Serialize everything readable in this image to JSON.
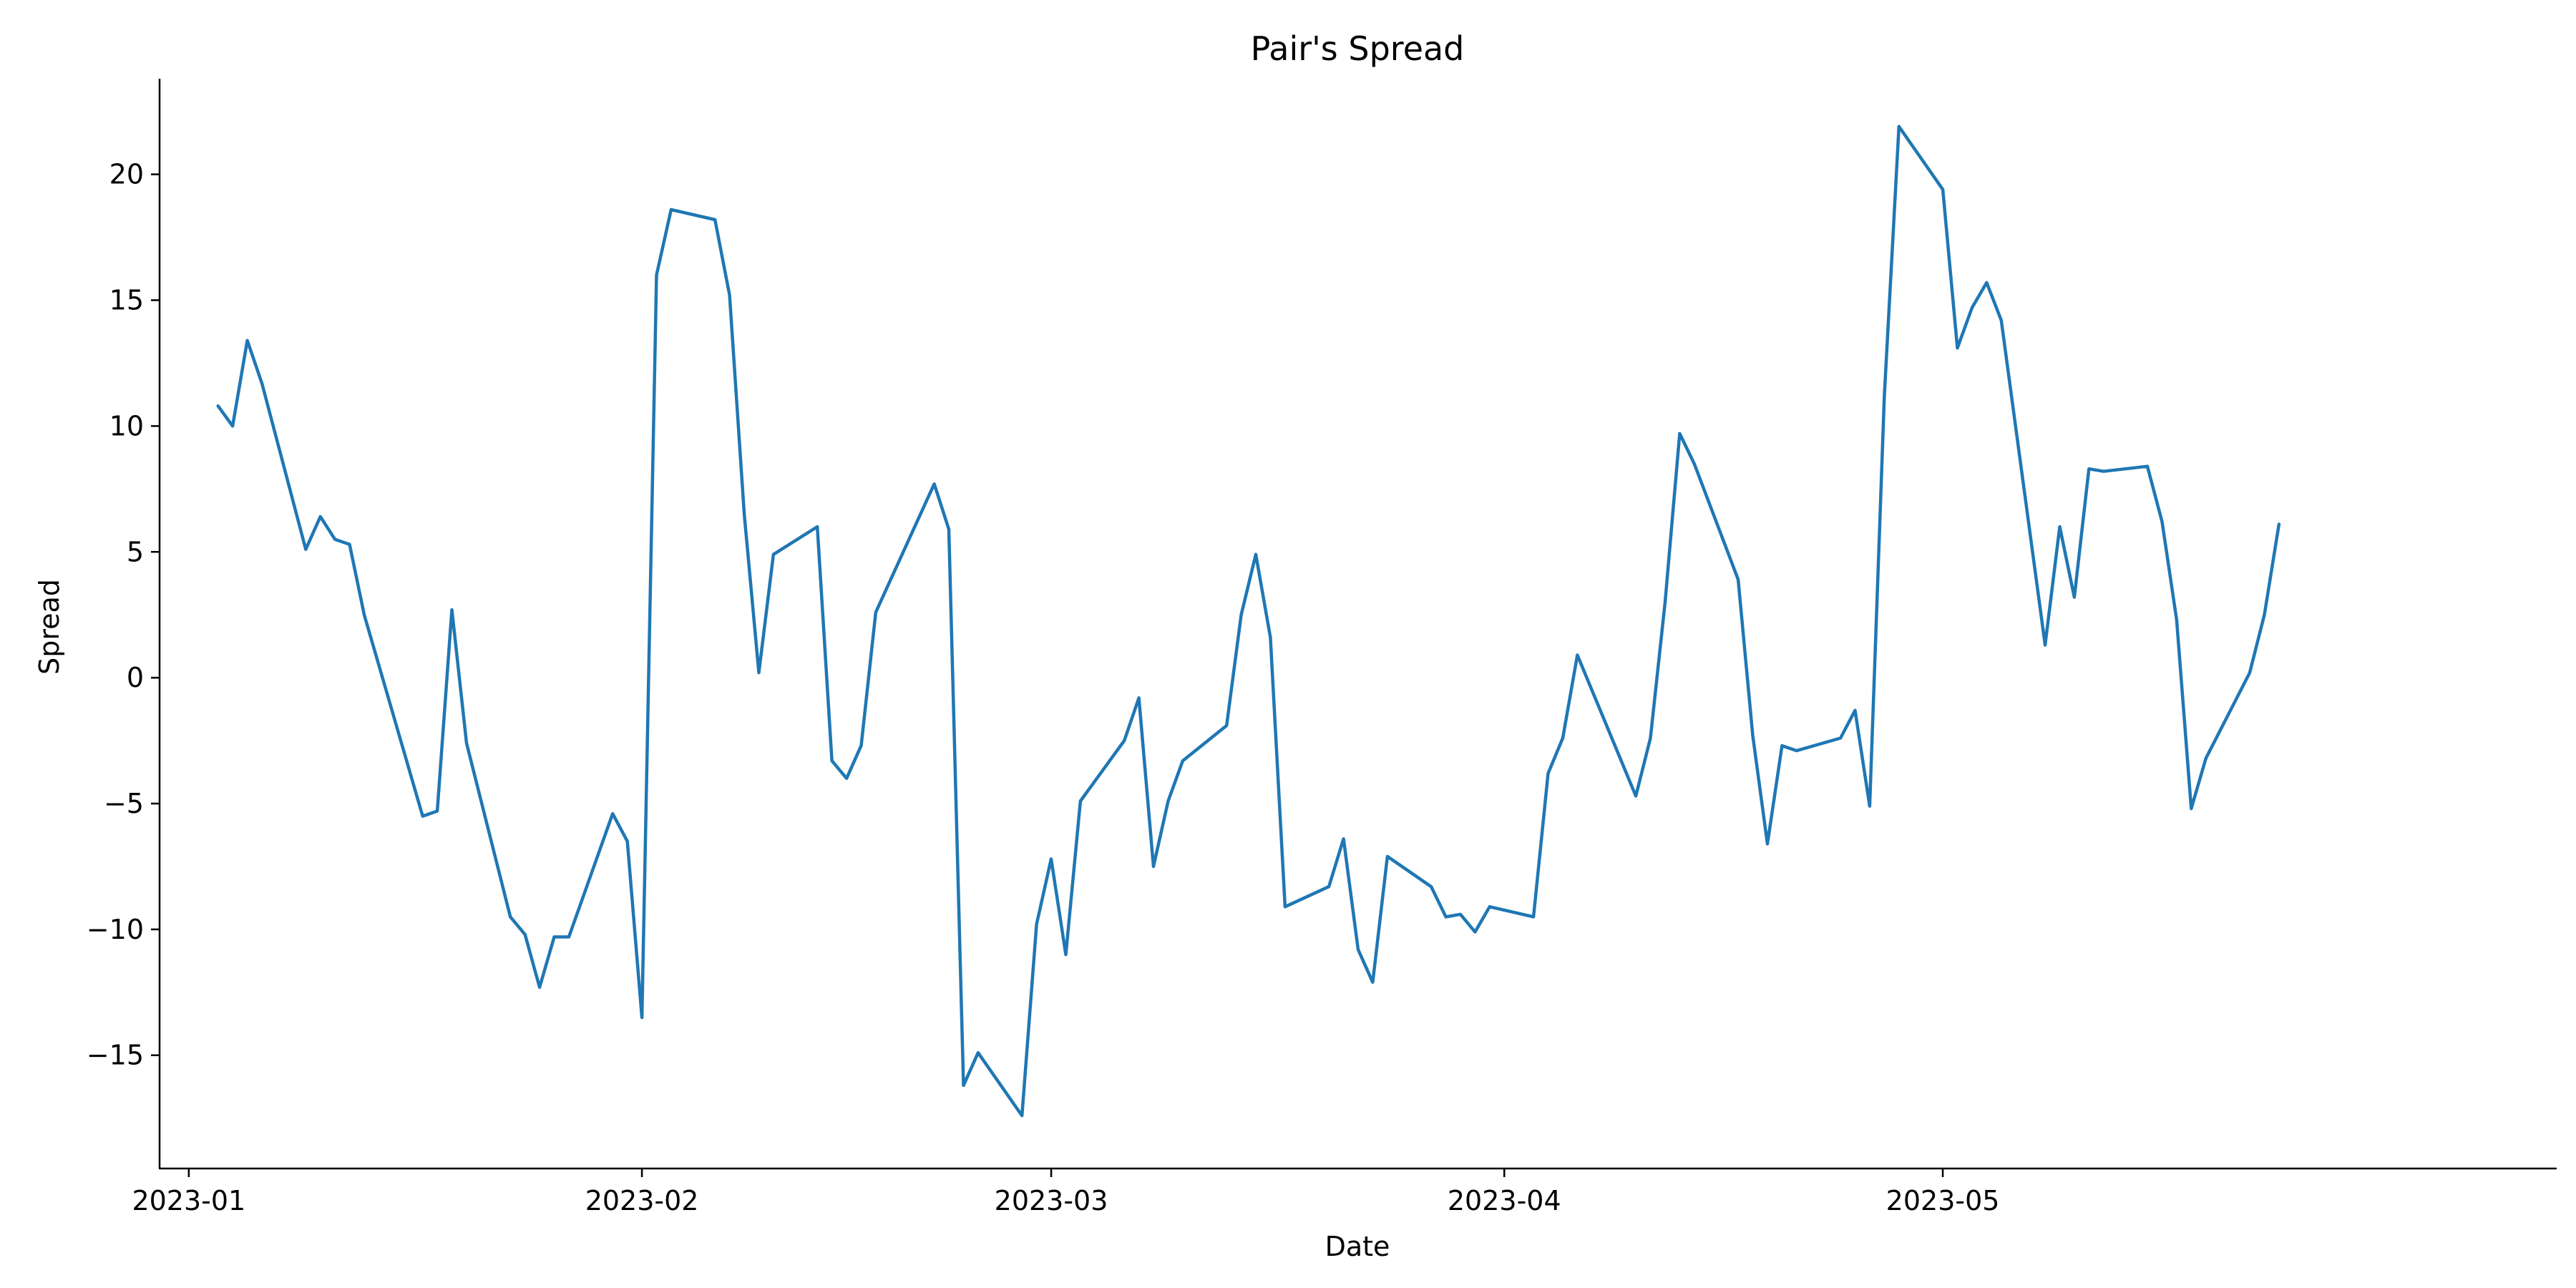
{
  "chart_data": {
    "type": "line",
    "title": "Pair's Spread",
    "xlabel": "Date",
    "ylabel": "Spread",
    "xlim": [
      "2022-12-30",
      "2023-06-12"
    ],
    "ylim": [
      -19.5,
      23.8
    ],
    "x_ticks": [
      "2023-01-01",
      "2023-02-01",
      "2023-03-01",
      "2023-04-01",
      "2023-05-01"
    ],
    "x_tick_labels": [
      "2023-01",
      "2023-02",
      "2023-03",
      "2023-04",
      "2023-05"
    ],
    "y_ticks": [
      -15,
      -10,
      -5,
      0,
      5,
      10,
      15,
      20
    ],
    "y_tick_labels": [
      "−15",
      "−10",
      "−5",
      "0",
      "5",
      "10",
      "15",
      "20"
    ],
    "grid": false,
    "legend": "none",
    "colors": {
      "series": "#1f77b4"
    },
    "series": [
      {
        "x": [
          "2023-01-03",
          "2023-01-04",
          "2023-01-05",
          "2023-01-06",
          "2023-01-09",
          "2023-01-10",
          "2023-01-11",
          "2023-01-12",
          "2023-01-13",
          "2023-01-17",
          "2023-01-18",
          "2023-01-19",
          "2023-01-20",
          "2023-01-23",
          "2023-01-24",
          "2023-01-25",
          "2023-01-26",
          "2023-01-27",
          "2023-01-30",
          "2023-01-31",
          "2023-02-01",
          "2023-02-02",
          "2023-02-03",
          "2023-02-06",
          "2023-02-07",
          "2023-02-08",
          "2023-02-09",
          "2023-02-10",
          "2023-02-13",
          "2023-02-14",
          "2023-02-15",
          "2023-02-16",
          "2023-02-17",
          "2023-02-21",
          "2023-02-22",
          "2023-02-23",
          "2023-02-24",
          "2023-02-27",
          "2023-02-28",
          "2023-03-01",
          "2023-03-02",
          "2023-03-03",
          "2023-03-06",
          "2023-03-07",
          "2023-03-08",
          "2023-03-09",
          "2023-03-10",
          "2023-03-13",
          "2023-03-14",
          "2023-03-15",
          "2023-03-16",
          "2023-03-17",
          "2023-03-20",
          "2023-03-21",
          "2023-03-22",
          "2023-03-23",
          "2023-03-24",
          "2023-03-27",
          "2023-03-28",
          "2023-03-29",
          "2023-03-30",
          "2023-03-31",
          "2023-04-03",
          "2023-04-04",
          "2023-04-05",
          "2023-04-06",
          "2023-04-10",
          "2023-04-11",
          "2023-04-12",
          "2023-04-13",
          "2023-04-14",
          "2023-04-17",
          "2023-04-18",
          "2023-04-19",
          "2023-04-20",
          "2023-04-21",
          "2023-04-24",
          "2023-04-25",
          "2023-04-26",
          "2023-04-27",
          "2023-04-28",
          "2023-05-01",
          "2023-05-02",
          "2023-05-03",
          "2023-05-04",
          "2023-05-05",
          "2023-05-08",
          "2023-05-09",
          "2023-05-10",
          "2023-05-11",
          "2023-05-12",
          "2023-05-15",
          "2023-05-16",
          "2023-05-17",
          "2023-05-18",
          "2023-05-19",
          "2023-05-22",
          "2023-05-23",
          "2023-05-24"
        ],
        "y": [
          10.8,
          10.0,
          13.4,
          11.7,
          5.1,
          6.4,
          5.5,
          5.3,
          2.5,
          -5.5,
          -5.3,
          2.7,
          -2.6,
          -9.5,
          -10.2,
          -12.3,
          -10.3,
          -10.3,
          -5.4,
          -6.5,
          -13.5,
          16.0,
          18.6,
          18.2,
          15.2,
          6.5,
          0.2,
          4.9,
          6.0,
          -3.3,
          -4.0,
          -2.7,
          2.6,
          7.7,
          5.9,
          -16.2,
          -14.9,
          -17.4,
          -9.8,
          -7.2,
          -11.0,
          -4.9,
          -2.5,
          -0.8,
          -7.5,
          -4.9,
          -3.3,
          -1.9,
          2.5,
          4.9,
          1.6,
          -9.1,
          -8.3,
          -6.4,
          -10.8,
          -12.1,
          -7.1,
          -8.3,
          -9.5,
          -9.4,
          -10.1,
          -9.1,
          -9.5,
          -3.8,
          -2.4,
          0.9,
          -4.7,
          -2.4,
          3.0,
          9.7,
          8.5,
          3.9,
          -2.3,
          -6.6,
          -2.7,
          -2.9,
          -2.4,
          -1.3,
          -5.1,
          11.2,
          21.9,
          19.4,
          13.1,
          14.7,
          15.7,
          14.2,
          1.3,
          6.0,
          3.2,
          8.3,
          8.2,
          8.4,
          6.2,
          2.3,
          -5.2,
          -3.2,
          0.2,
          2.5,
          6.1
        ]
      }
    ]
  }
}
